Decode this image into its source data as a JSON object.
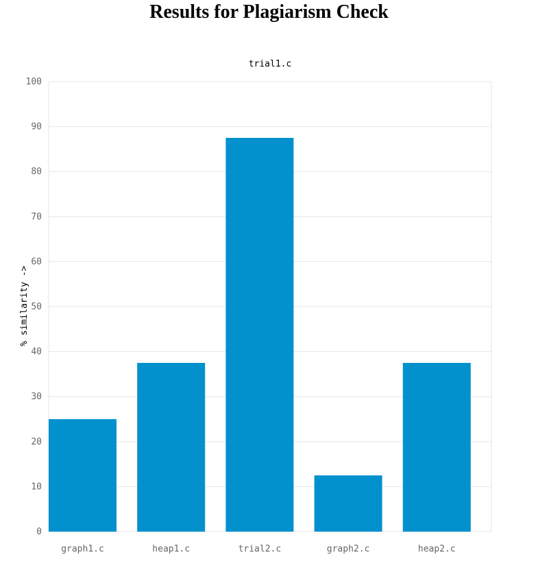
{
  "page": {
    "title": "Results for Plagiarism Check"
  },
  "chart_data": {
    "type": "bar",
    "title": "trial1.c",
    "xlabel": "",
    "ylabel": "% similarity ->",
    "categories": [
      "graph1.c",
      "heap1.c",
      "trial2.c",
      "graph2.c",
      "heap2.c"
    ],
    "values": [
      25,
      37.5,
      87.5,
      12.5,
      37.5
    ],
    "ylim": [
      0,
      100
    ],
    "yticks": [
      0,
      10,
      20,
      30,
      40,
      50,
      60,
      70,
      80,
      90,
      100
    ],
    "grid": true,
    "legend": "none",
    "bar_color": "#0391ce",
    "grid_color": "#e6e6e6"
  }
}
